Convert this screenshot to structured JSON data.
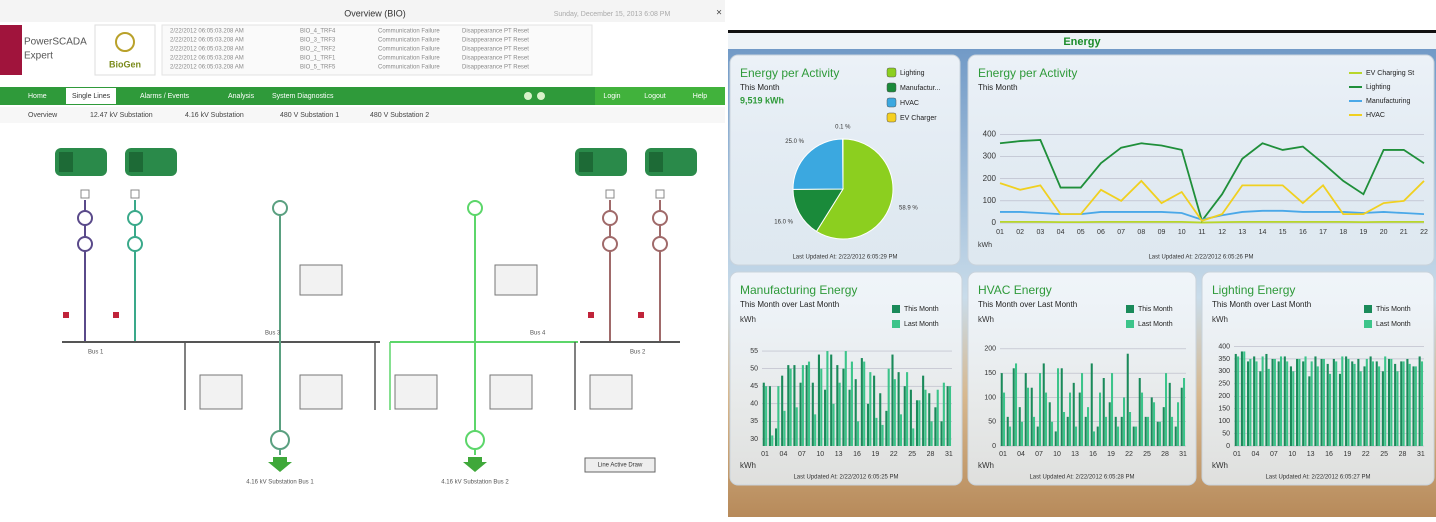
{
  "scada": {
    "window_title": "Overview (BIO)",
    "datetime": "Sunday, December 15, 2013 6:08 PM",
    "brand": [
      "PowerSCADA",
      "Expert"
    ],
    "site": "BioGen",
    "alarms": [
      [
        "2/22/2012 06:05:03.208 AM",
        "BIO_4_TRF4",
        "Communication Failure",
        "Disappearance PT Reset"
      ],
      [
        "2/22/2012 06:05:03.208 AM",
        "BIO_3_TRF3",
        "Communication Failure",
        "Disappearance PT Reset"
      ],
      [
        "2/22/2012 06:05:03.208 AM",
        "BIO_2_TRF2",
        "Communication Failure",
        "Disappearance PT Reset"
      ],
      [
        "2/22/2012 06:05:03.208 AM",
        "BIO_1_TRF1",
        "Communication Failure",
        "Disappearance PT Reset"
      ],
      [
        "2/22/2012 06:05:03.208 AM",
        "BIO_5_TRF5",
        "Communication Failure",
        "Disappearance PT Reset"
      ]
    ],
    "nav": [
      "Home",
      "Single Lines",
      "Alarms / Events",
      "Analysis",
      "System Diagnostics"
    ],
    "session": [
      "Login",
      "Logout",
      "Help"
    ],
    "tabs": [
      "Overview",
      "12.47 kV Substation",
      "4.16 kV Substation",
      "480 V Substation 1",
      "480 V Substation 2"
    ],
    "buses": [
      "Bus 1",
      "Bus 3",
      "Bus 4",
      "Bus 2"
    ],
    "feeders": [
      "4.16 kV Substation Bus 1",
      "4.16 kV Substation Bus 2"
    ],
    "button": "Line Active Draw"
  },
  "dashboard": {
    "title": "Energy",
    "charts": [
      {
        "type": "pie",
        "title": "Energy per Activity",
        "subtitle": "This Month",
        "total": "9,519 kWh",
        "categories": [
          "Lighting",
          "Manufactur...",
          "HVAC",
          "EV Charger"
        ],
        "values": [
          58.9,
          16.0,
          25.0,
          0.1
        ],
        "value_labels": [
          "58.9 %",
          "16.0 %",
          "25.0 %",
          "0.1 %"
        ],
        "colors": [
          "#8ccf1f",
          "#1a8a3a",
          "#3ba8e0",
          "#f5d020"
        ],
        "footer": "Last Updated At: 2/22/2012 6:05:29 PM"
      },
      {
        "type": "line",
        "title": "Energy per Activity",
        "subtitle": "This Month",
        "x_label": "kWh",
        "categories": [
          "01",
          "02",
          "03",
          "04",
          "05",
          "06",
          "07",
          "08",
          "09",
          "10",
          "11",
          "12",
          "13",
          "14",
          "15",
          "16",
          "17",
          "18",
          "19",
          "20",
          "21",
          "22"
        ],
        "ylim": [
          0,
          420
        ],
        "yticks": [
          0,
          100,
          200,
          300,
          400
        ],
        "grid": true,
        "series": [
          {
            "name": "EV Charging St",
            "color": "#b8d62a",
            "values": [
              5,
              5,
              5,
              4,
              4,
              5,
              5,
              5,
              5,
              5,
              2,
              4,
              5,
              5,
              5,
              5,
              5,
              5,
              4,
              5,
              5,
              5
            ]
          },
          {
            "name": "Lighting",
            "color": "#1f8f3a",
            "values": [
              360,
              370,
              375,
              160,
              160,
              270,
              340,
              360,
              350,
              330,
              10,
              130,
              290,
              360,
              330,
              345,
              270,
              190,
              130,
              330,
              330,
              270
            ]
          },
          {
            "name": "Manufacturing",
            "color": "#4aa8e8",
            "values": [
              50,
              50,
              45,
              40,
              40,
              50,
              50,
              50,
              50,
              45,
              15,
              35,
              50,
              55,
              55,
              50,
              50,
              50,
              45,
              50,
              45,
              40
            ]
          },
          {
            "name": "HVAC",
            "color": "#f0d020",
            "values": [
              180,
              150,
              170,
              40,
              40,
              150,
              100,
              190,
              90,
              140,
              10,
              40,
              170,
              170,
              170,
              90,
              170,
              40,
              40,
              90,
              100,
              190
            ]
          }
        ],
        "footer": "Last Updated At: 2/22/2012 6:05:26 PM"
      },
      {
        "type": "bar",
        "title": "Manufacturing Energy",
        "subtitle": "This Month over Last Month",
        "y_label": "kWh",
        "x_label": "kWh",
        "categories": [
          "01",
          null,
          null,
          "04",
          null,
          null,
          "07",
          null,
          null,
          "10",
          null,
          null,
          "13",
          null,
          null,
          "16",
          null,
          null,
          "19",
          null,
          null,
          "22",
          null,
          null,
          "25",
          null,
          null,
          "28",
          null,
          null,
          "31"
        ],
        "ylim": [
          28,
          57
        ],
        "yticks": [
          30,
          35,
          40,
          45,
          50,
          55
        ],
        "grid": true,
        "series": [
          {
            "name": "This Month",
            "color": "#1a8a5a",
            "values": [
              46,
              45,
              33,
              48,
              51,
              51,
              46,
              51,
              46,
              54,
              44,
              54,
              51,
              50,
              44,
              47,
              53,
              40,
              48,
              43,
              38,
              54,
              49,
              45,
              44,
              41,
              48,
              43,
              39,
              35,
              45
            ]
          },
          {
            "name": "Last Month",
            "color": "#3cc48a",
            "values": [
              45,
              31,
              45,
              38,
              50,
              39,
              51,
              52,
              37,
              50,
              55,
              40,
              46,
              55,
              52,
              35,
              52,
              49,
              36,
              34,
              50,
              47,
              37,
              49,
              33,
              41,
              44,
              35,
              44,
              46,
              45
            ]
          }
        ],
        "footer": "Last Updated At: 2/22/2012 6:05:25 PM"
      },
      {
        "type": "bar",
        "title": "HVAC Energy",
        "subtitle": "This Month over Last Month",
        "y_label": "kWh",
        "x_label": "kWh",
        "categories": [
          "01",
          null,
          null,
          "04",
          null,
          null,
          "07",
          null,
          null,
          "10",
          null,
          null,
          "13",
          null,
          null,
          "16",
          null,
          null,
          "19",
          null,
          null,
          "22",
          null,
          null,
          "25",
          null,
          null,
          "28",
          null,
          null,
          "31"
        ],
        "ylim": [
          0,
          210
        ],
        "yticks": [
          0,
          50,
          100,
          150,
          200
        ],
        "grid": true,
        "series": [
          {
            "name": "This Month",
            "color": "#1a8a5a",
            "values": [
              150,
              60,
              160,
              80,
              150,
              120,
              40,
              170,
              90,
              30,
              160,
              60,
              130,
              110,
              60,
              170,
              40,
              140,
              90,
              60,
              60,
              190,
              40,
              140,
              60,
              100,
              50,
              80,
              130,
              40,
              120
            ]
          },
          {
            "name": "Last Month",
            "color": "#3cc48a",
            "values": [
              110,
              40,
              170,
              50,
              120,
              60,
              150,
              110,
              50,
              160,
              70,
              110,
              40,
              150,
              80,
              30,
              110,
              60,
              150,
              40,
              100,
              70,
              40,
              110,
              60,
              90,
              50,
              150,
              60,
              90,
              140
            ]
          }
        ],
        "footer": "Last Updated At: 2/22/2012 6:05:28 PM"
      },
      {
        "type": "bar",
        "title": "Lighting Energy",
        "subtitle": "This Month over Last Month",
        "y_label": "kWh",
        "x_label": "kWh",
        "categories": [
          "01",
          null,
          null,
          "04",
          null,
          null,
          "07",
          null,
          null,
          "10",
          null,
          null,
          "13",
          null,
          null,
          "16",
          null,
          null,
          "19",
          null,
          null,
          "22",
          null,
          null,
          "25",
          null,
          null,
          "28",
          null,
          null,
          "31"
        ],
        "ylim": [
          0,
          410
        ],
        "yticks": [
          0,
          50,
          100,
          150,
          200,
          250,
          300,
          350,
          400
        ],
        "grid": true,
        "series": [
          {
            "name": "This Month",
            "color": "#1a8a5a",
            "values": [
              370,
              380,
              340,
              360,
              300,
              370,
              350,
              340,
              360,
              320,
              350,
              340,
              280,
              360,
              350,
              330,
              350,
              290,
              360,
              340,
              350,
              320,
              360,
              340,
              300,
              350,
              330,
              340,
              350,
              320,
              360
            ]
          },
          {
            "name": "Last Month",
            "color": "#3cc48a",
            "values": [
              360,
              380,
              350,
              340,
              360,
              310,
              350,
              360,
              340,
              300,
              350,
              360,
              340,
              320,
              350,
              290,
              340,
              360,
              350,
              330,
              300,
              350,
              340,
              320,
              360,
              350,
              300,
              340,
              330,
              320,
              340
            ]
          }
        ],
        "footer": "Last Updated At: 2/22/2012 6:05:27 PM"
      }
    ]
  }
}
